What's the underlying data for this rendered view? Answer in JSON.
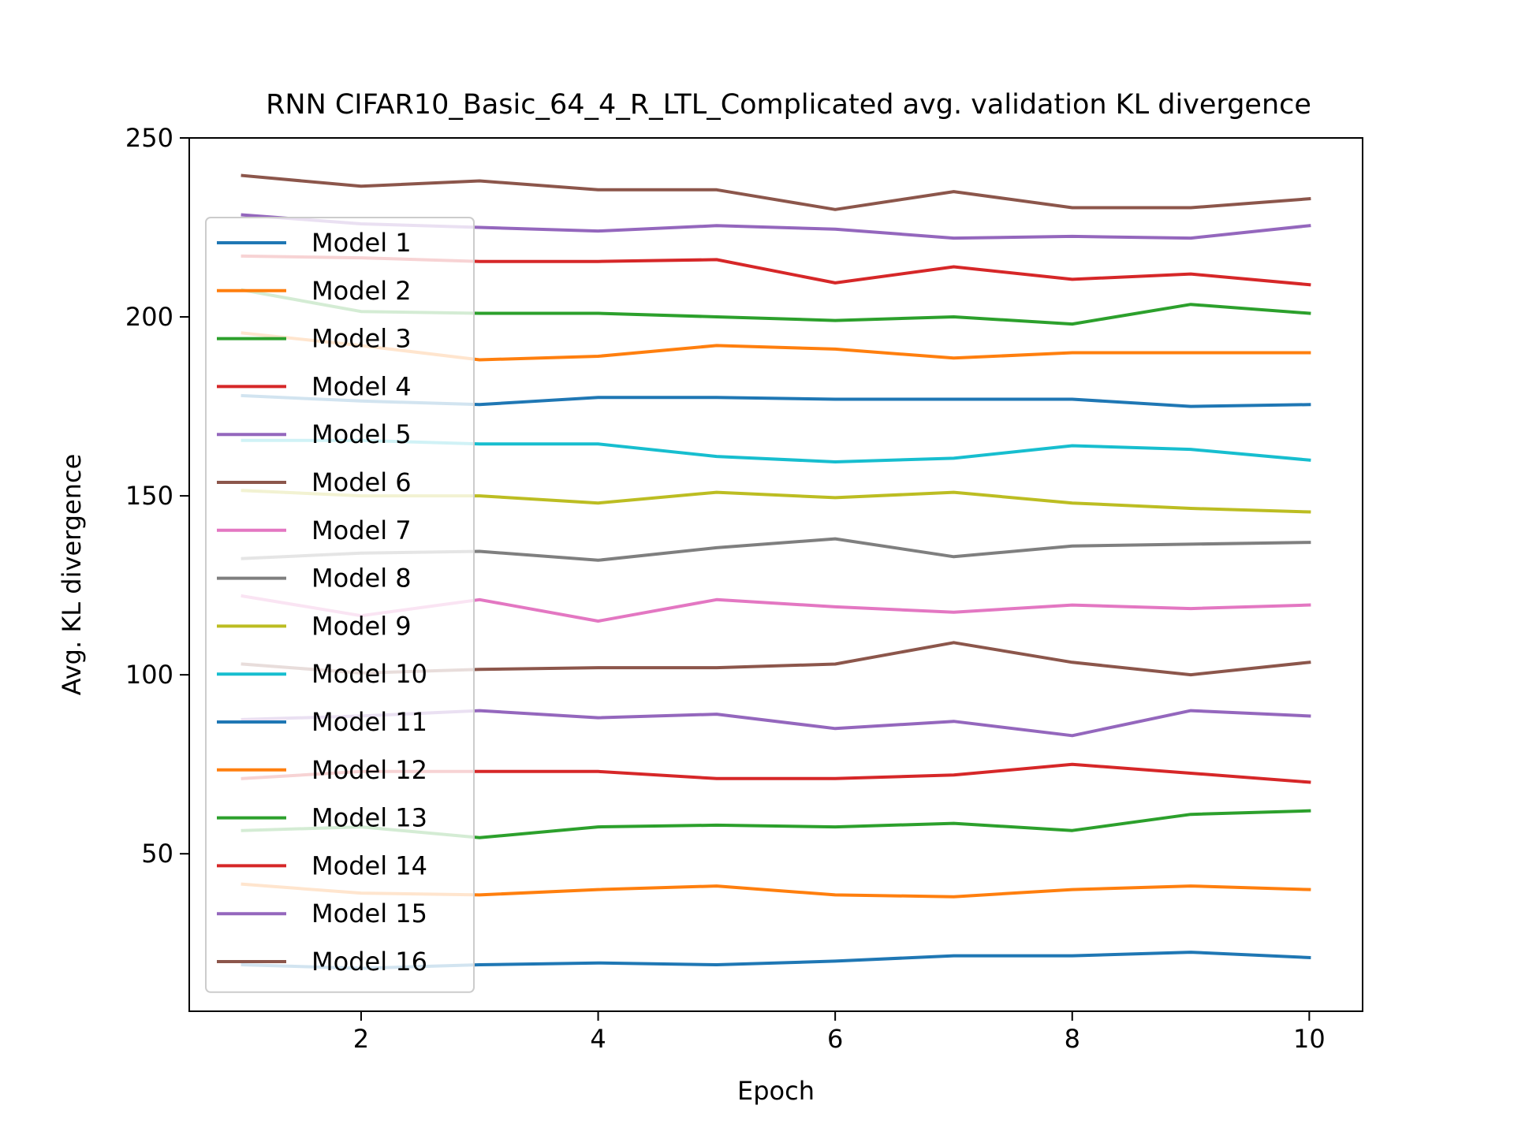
{
  "chart_data": {
    "type": "line",
    "title": "RNN CIFAR10_Basic_64_4_R_LTL_Complicated avg. validation KL divergence",
    "xlabel": "Epoch",
    "ylabel": "Avg. KL divergence",
    "xlim": [
      0.55,
      10.45
    ],
    "ylim": [
      6,
      250
    ],
    "xticks": [
      2,
      4,
      6,
      8,
      10
    ],
    "yticks": [
      50,
      100,
      150,
      200,
      250
    ],
    "grid": false,
    "legend_position": "upper-left",
    "x": [
      1,
      2,
      3,
      4,
      5,
      6,
      7,
      8,
      9,
      10
    ],
    "series": [
      {
        "name": "Model 1",
        "color": "#1f77b4",
        "values": [
          19,
          18,
          19,
          19.5,
          19,
          20,
          21.5,
          21.5,
          22.5,
          21
        ]
      },
      {
        "name": "Model 2",
        "color": "#ff7f0e",
        "values": [
          41.5,
          39,
          38.5,
          40,
          41,
          38.5,
          38,
          40,
          41,
          40
        ]
      },
      {
        "name": "Model 3",
        "color": "#2ca02c",
        "values": [
          56.5,
          57.5,
          54.5,
          57.5,
          58,
          57.5,
          58.5,
          56.5,
          61,
          62
        ]
      },
      {
        "name": "Model 4",
        "color": "#d62728",
        "values": [
          71,
          73,
          73,
          73,
          71,
          71,
          72,
          75,
          72.5,
          70
        ]
      },
      {
        "name": "Model 5",
        "color": "#9467bd",
        "values": [
          87.5,
          88.5,
          90,
          88,
          89,
          85,
          87,
          83,
          90,
          88.5
        ]
      },
      {
        "name": "Model 6",
        "color": "#8c564b",
        "values": [
          103,
          100.5,
          101.5,
          102,
          102,
          103,
          109,
          103.5,
          100,
          103.5
        ]
      },
      {
        "name": "Model 7",
        "color": "#e377c2",
        "values": [
          122,
          116.5,
          121,
          115,
          121,
          119,
          117.5,
          119.5,
          118.5,
          119.5
        ]
      },
      {
        "name": "Model 8",
        "color": "#7f7f7f",
        "values": [
          132.5,
          134,
          134.5,
          132,
          135.5,
          138,
          133,
          136,
          136.5,
          137
        ]
      },
      {
        "name": "Model 9",
        "color": "#bcbd22",
        "values": [
          151.5,
          150,
          150,
          148,
          151,
          149.5,
          151,
          148,
          146.5,
          145.5
        ]
      },
      {
        "name": "Model 10",
        "color": "#17becf",
        "values": [
          165.5,
          165.5,
          164.5,
          164.5,
          161,
          159.5,
          160.5,
          164,
          163,
          160
        ]
      },
      {
        "name": "Model 11",
        "color": "#1f77b4",
        "values": [
          178,
          176.5,
          175.5,
          177.5,
          177.5,
          177,
          177,
          177,
          175,
          175.5
        ]
      },
      {
        "name": "Model 12",
        "color": "#ff7f0e",
        "values": [
          195.5,
          192,
          188,
          189,
          192,
          191,
          188.5,
          190,
          190,
          190
        ]
      },
      {
        "name": "Model 13",
        "color": "#2ca02c",
        "values": [
          207.5,
          201.5,
          201,
          201,
          200,
          199,
          200,
          198,
          203.5,
          201
        ]
      },
      {
        "name": "Model 14",
        "color": "#d62728",
        "values": [
          217,
          216.5,
          215.5,
          215.5,
          216,
          209.5,
          214,
          210.5,
          212,
          209
        ]
      },
      {
        "name": "Model 15",
        "color": "#9467bd",
        "values": [
          228.5,
          226,
          225,
          224,
          225.5,
          224.5,
          222,
          222.5,
          222,
          225.5
        ]
      },
      {
        "name": "Model 16",
        "color": "#8c564b",
        "values": [
          239.5,
          236.5,
          238,
          235.5,
          235.5,
          230,
          235,
          230.5,
          230.5,
          233
        ]
      }
    ]
  }
}
